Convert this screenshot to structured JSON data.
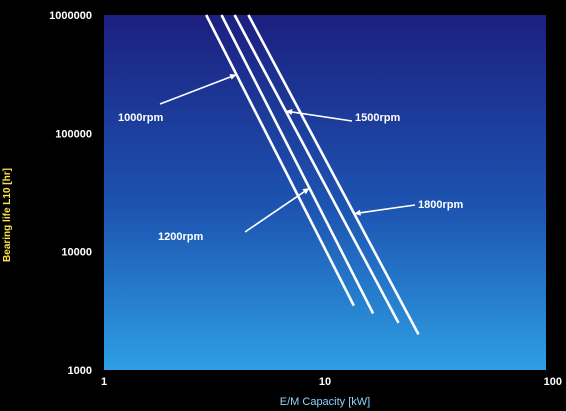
{
  "chart_data": {
    "type": "line",
    "x_scale": "log",
    "y_scale": "log",
    "xlim": [
      1,
      100
    ],
    "ylim": [
      1000,
      1000000
    ],
    "xlabel": "E/M Capacity [kW]",
    "ylabel": "Bearing life L10 [hr]",
    "x_ticks": [
      "1",
      "10",
      "100"
    ],
    "y_ticks": [
      "1000",
      "10000",
      "100000",
      "1000000"
    ],
    "grid": false,
    "legend": "none",
    "series": [
      {
        "name": "1000rpm",
        "x": [
          2.9,
          13.5
        ],
        "y": [
          1000000,
          3500
        ]
      },
      {
        "name": "1200rpm",
        "x": [
          3.4,
          16.5
        ],
        "y": [
          1000000,
          3000
        ]
      },
      {
        "name": "1500rpm",
        "x": [
          3.9,
          21.5
        ],
        "y": [
          1000000,
          2500
        ]
      },
      {
        "name": "1800rpm",
        "x": [
          4.5,
          26.5
        ],
        "y": [
          1000000,
          2000
        ]
      }
    ],
    "annotations": [
      {
        "text": "1000rpm",
        "series": "1000rpm"
      },
      {
        "text": "1200rpm",
        "series": "1200rpm"
      },
      {
        "text": "1500rpm",
        "series": "1500rpm"
      },
      {
        "text": "1800rpm",
        "series": "1800rpm"
      }
    ],
    "colors": {
      "plot_top": "#1c1f80",
      "plot_bottom": "#2e9fe3",
      "lines": "#ffffff",
      "axis_label_y": "#ffe24a",
      "axis_label_x": "#8fd3ff"
    }
  }
}
